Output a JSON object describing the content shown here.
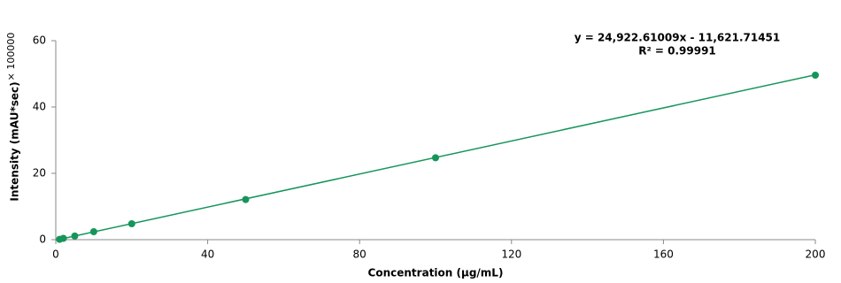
{
  "chart_data": {
    "type": "scatter",
    "equation": "y = 24,922.61009x - 11,621.71451",
    "r_squared": "R² = 0.99991",
    "x_label": "Concentration (µg/mL)",
    "y_label": "Intensity (mAU*sec)",
    "y_multiplier": "× 100000",
    "x": [
      1,
      2,
      5,
      10,
      20,
      50,
      100,
      200
    ],
    "values": [
      0.1,
      0.4,
      1.1,
      2.4,
      4.8,
      12.1,
      24.7,
      49.6
    ],
    "color": "#16955a",
    "trendline": {
      "x": [
        1,
        200
      ],
      "y": [
        0.1,
        49.7
      ]
    },
    "xlim": [
      0,
      200
    ],
    "xticks": [
      0,
      40,
      80,
      120,
      160,
      200
    ],
    "ylim": [
      0,
      60
    ],
    "yticks": [
      0,
      20,
      40,
      60
    ],
    "grid": false
  }
}
